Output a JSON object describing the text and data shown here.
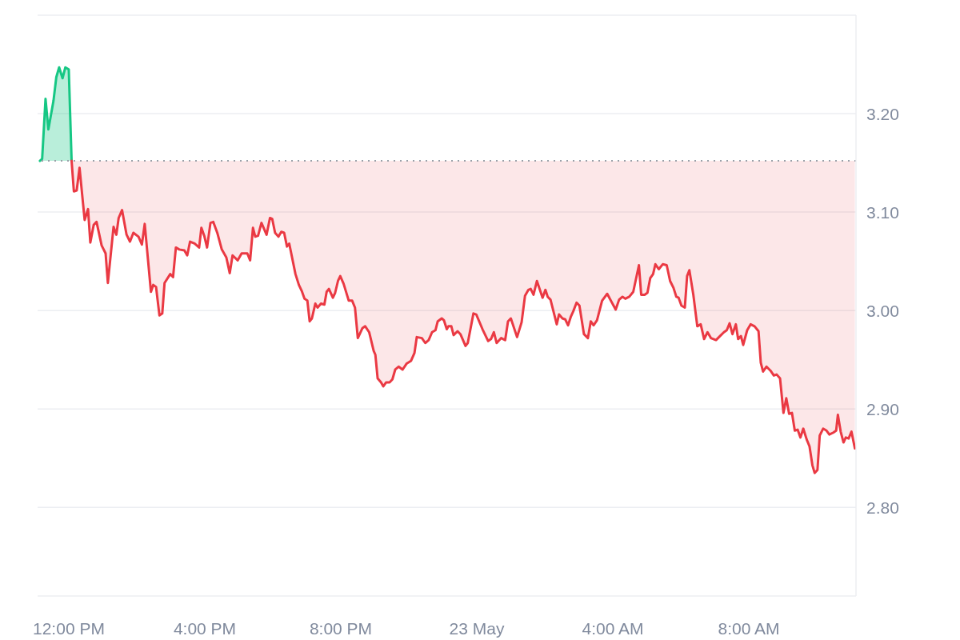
{
  "chart_data": {
    "type": "area",
    "series": [
      {
        "color": "#16c784",
        "x": [
          "--05-22T11:09",
          "--05-22T11:13",
          "--05-22T11:19",
          "--05-22T11:24",
          "--05-22T11:33",
          "--05-22T11:38",
          "--05-22T11:43",
          "--05-22T11:49",
          "--05-22T11:54",
          "--05-22T12:00",
          "--05-22T12:05"
        ],
        "values": [
          3.152,
          3.154,
          3.215,
          3.184,
          3.213,
          3.237,
          3.247,
          3.236,
          3.247,
          3.245,
          3.152
        ]
      },
      {
        "type": "line",
        "color": "#ea3943",
        "x": [
          "--05-22T12:05",
          "--05-22T12:09",
          "--05-22T12:14",
          "--05-22T12:19",
          "--05-22T12:28",
          "--05-22T12:34",
          "--05-22T12:38",
          "--05-22T12:44",
          "--05-22T12:49",
          "--05-22T12:58",
          "--05-22T13:05",
          "--05-22T13:09",
          "--05-22T13:19",
          "--05-22T13:24",
          "--05-22T13:28",
          "--05-22T13:34",
          "--05-22T13:42",
          "--05-22T13:48",
          "--05-22T13:54",
          "--05-22T14:03",
          "--05-22T14:09",
          "--05-22T14:14",
          "--05-22T14:25",
          "--05-22T14:29",
          "--05-22T14:34",
          "--05-22T14:40",
          "--05-22T14:45",
          "--05-22T14:49",
          "--05-22T14:59",
          "--05-22T15:04",
          "--05-22T15:09",
          "--05-22T15:15",
          "--05-22T15:24",
          "--05-22T15:29",
          "--05-22T15:34",
          "--05-22T15:42",
          "--05-22T15:50",
          "--05-22T15:54",
          "--05-22T15:59",
          "--05-22T16:04",
          "--05-22T16:10",
          "--05-22T16:15",
          "--05-22T16:22",
          "--05-22T16:30",
          "--05-22T16:38",
          "--05-22T16:44",
          "--05-22T16:49",
          "--05-22T16:58",
          "--05-22T17:05",
          "--05-22T17:15",
          "--05-22T17:20",
          "--05-22T17:25",
          "--05-22T17:29",
          "--05-22T17:34",
          "--05-22T17:40",
          "--05-22T17:49",
          "--05-22T17:55",
          "--05-22T17:59",
          "--05-22T18:04",
          "--05-22T18:10",
          "--05-22T18:15",
          "--05-22T18:20",
          "--05-22T18:25",
          "--05-22T18:29",
          "--05-22T18:40",
          "--05-22T18:46",
          "--05-22T18:51",
          "--05-22T18:56",
          "--05-22T19:01",
          "--05-22T19:05",
          "--05-22T19:09",
          "--05-22T19:15",
          "--05-22T19:19",
          "--05-22T19:25",
          "--05-22T19:31",
          "--05-22T19:35",
          "--05-22T19:39",
          "--05-22T19:46",
          "--05-22T19:50",
          "--05-22T19:55",
          "--05-22T19:59",
          "--05-22T20:05",
          "--05-22T20:14",
          "--05-22T20:20",
          "--05-22T20:25",
          "--05-22T20:30",
          "--05-22T20:38",
          "--05-22T20:43",
          "--05-22T20:50",
          "--05-22T20:58",
          "--05-22T21:01",
          "--05-22T21:05",
          "--05-22T21:11",
          "--05-22T21:15",
          "--05-22T21:20",
          "--05-22T21:26",
          "--05-22T21:31",
          "--05-22T21:36",
          "--05-22T21:42",
          "--05-22T21:49",
          "--05-22T21:56",
          "--05-22T22:04",
          "--05-22T22:10",
          "--05-22T22:14",
          "--05-22T22:23",
          "--05-22T22:29",
          "--05-22T22:35",
          "--05-22T22:41",
          "--05-22T22:47",
          "--05-22T22:51",
          "--05-22T22:58",
          "--05-22T23:02",
          "--05-22T23:07",
          "--05-22T23:10",
          "--05-22T23:15",
          "--05-22T23:19",
          "--05-22T23:26",
          "--05-22T23:31",
          "--05-22T23:40",
          "--05-22T23:44",
          "--05-22T23:54",
          "--05-22T23:59",
          "--05-23T00:10",
          "--05-23T00:20",
          "--05-23T00:25",
          "--05-23T00:30",
          "--05-23T00:35",
          "--05-23T00:43",
          "--05-23T00:50",
          "--05-23T00:55",
          "--05-23T01:00",
          "--05-23T01:11",
          "--05-23T01:19",
          "--05-23T01:25",
          "--05-23T01:31",
          "--05-23T01:35",
          "--05-23T01:40",
          "--05-23T01:46",
          "--05-23T01:56",
          "--05-23T02:01",
          "--05-23T02:05",
          "--05-23T02:10",
          "--05-23T02:21",
          "--05-23T02:25",
          "--05-23T02:31",
          "--05-23T02:36",
          "--05-23T02:41",
          "--05-23T02:46",
          "--05-23T02:50",
          "--05-23T02:56",
          "--05-23T03:01",
          "--05-23T03:09",
          "--05-23T03:16",
          "--05-23T03:21",
          "--05-23T03:26",
          "--05-23T03:32",
          "--05-23T03:41",
          "--05-23T03:50",
          "--05-23T04:05",
          "--05-23T04:11",
          "--05-23T04:17",
          "--05-23T04:22",
          "--05-23T04:29",
          "--05-23T04:36",
          "--05-23T04:46",
          "--05-23T04:50",
          "--05-23T04:56",
          "--05-23T05:01",
          "--05-23T05:06",
          "--05-23T05:11",
          "--05-23T05:15",
          "--05-23T05:21",
          "--05-23T05:28",
          "--05-23T05:35",
          "--05-23T05:41",
          "--05-23T05:47",
          "--05-23T05:52",
          "--05-23T05:56",
          "--05-23T06:01",
          "--05-23T06:07",
          "--05-23T06:11",
          "--05-23T06:15",
          "--05-23T06:22",
          "--05-23T06:29",
          "--05-23T06:35",
          "--05-23T06:41",
          "--05-23T06:47",
          "--05-23T06:53",
          "--05-23T07:02",
          "--05-23T07:09",
          "--05-23T07:16",
          "--05-23T07:21",
          "--05-23T07:26",
          "--05-23T07:31",
          "--05-23T07:37",
          "--05-23T07:41",
          "--05-23T07:46",
          "--05-23T07:50",
          "--05-23T07:57",
          "--05-23T08:03",
          "--05-23T08:10",
          "--05-23T08:17",
          "--05-23T08:21",
          "--05-23T08:25",
          "--05-23T08:31",
          "--05-23T08:38",
          "--05-23T08:44",
          "--05-23T08:49",
          "--05-23T08:55",
          "--05-23T09:01",
          "--05-23T09:06",
          "--05-23T09:11",
          "--05-23T09:16",
          "--05-23T09:21",
          "--05-23T09:26",
          "--05-23T09:31",
          "--05-23T09:36",
          "--05-23T09:42",
          "--05-23T09:47",
          "--05-23T09:52",
          "--05-23T09:56",
          "--05-23T10:01",
          "--05-23T10:05",
          "--05-23T10:11",
          "--05-23T10:17",
          "--05-23T10:22",
          "--05-23T10:29",
          "--05-23T10:34",
          "--05-23T10:37",
          "--05-23T10:42",
          "--05-23T10:47",
          "--05-23T10:51",
          "--05-23T10:56",
          "--05-23T11:01",
          "--05-23T11:07"
        ],
        "values": [
          3.152,
          3.121,
          3.122,
          3.145,
          3.092,
          3.103,
          3.069,
          3.087,
          3.09,
          3.066,
          3.058,
          3.028,
          3.085,
          3.077,
          3.094,
          3.102,
          3.077,
          3.07,
          3.079,
          3.075,
          3.067,
          3.088,
          3.019,
          3.026,
          3.024,
          2.995,
          2.997,
          3.028,
          3.037,
          3.034,
          3.064,
          3.062,
          3.061,
          3.056,
          3.07,
          3.068,
          3.064,
          3.084,
          3.076,
          3.064,
          3.089,
          3.09,
          3.079,
          3.062,
          3.054,
          3.038,
          3.056,
          3.051,
          3.058,
          3.058,
          3.051,
          3.084,
          3.075,
          3.076,
          3.089,
          3.077,
          3.094,
          3.093,
          3.079,
          3.075,
          3.08,
          3.079,
          3.065,
          3.068,
          3.037,
          3.026,
          3.02,
          3.012,
          3.01,
          2.989,
          2.992,
          3.007,
          3.003,
          3.007,
          3.006,
          3.019,
          3.022,
          3.013,
          3.018,
          3.03,
          3.035,
          3.027,
          3.01,
          3.01,
          3.003,
          2.972,
          2.982,
          2.984,
          2.978,
          2.959,
          2.955,
          2.931,
          2.927,
          2.923,
          2.927,
          2.927,
          2.93,
          2.94,
          2.943,
          2.94,
          2.946,
          2.949,
          2.957,
          2.973,
          2.972,
          2.967,
          2.97,
          2.978,
          2.98,
          2.989,
          2.992,
          2.99,
          2.981,
          2.984,
          2.984,
          2.975,
          2.979,
          2.976,
          2.964,
          2.967,
          2.997,
          2.996,
          2.981,
          2.969,
          2.971,
          2.978,
          2.967,
          2.972,
          2.97,
          2.989,
          2.992,
          2.973,
          2.988,
          3.015,
          3.021,
          3.022,
          3.016,
          3.03,
          3.013,
          3.021,
          3.014,
          3.011,
          2.986,
          2.996,
          2.992,
          2.991,
          2.985,
          2.994,
          2.999,
          3.008,
          3.005,
          2.976,
          2.972,
          2.989,
          2.985,
          2.99,
          3.01,
          3.017,
          3.001,
          3.011,
          3.014,
          3.012,
          3.014,
          3.019,
          3.046,
          3.016,
          3.016,
          3.018,
          3.033,
          3.037,
          3.047,
          3.042,
          3.047,
          3.046,
          3.03,
          3.023,
          3.014,
          3.013,
          3.005,
          3.003,
          3.035,
          3.041,
          3.016,
          2.984,
          2.986,
          2.971,
          2.978,
          2.972,
          2.97,
          2.974,
          2.978,
          2.98,
          2.987,
          2.976,
          2.986,
          2.971,
          2.974,
          2.965,
          2.98,
          2.986,
          2.984,
          2.979,
          2.947,
          2.938,
          2.943,
          2.939,
          2.934,
          2.935,
          2.931,
          2.896,
          2.911,
          2.895,
          2.896,
          2.878,
          2.879,
          2.871,
          2.88,
          2.869,
          2.862,
          2.843,
          2.835,
          2.838,
          2.873,
          2.88,
          2.878,
          2.874,
          2.876,
          2.878,
          2.894,
          2.877,
          2.866,
          2.871,
          2.87,
          2.877,
          2.86
        ],
        "lower": [
          3.152,
          3.121,
          3.122,
          3.145,
          3.092,
          3.103,
          3.069,
          3.087,
          3.09,
          3.066,
          3.058,
          3.028,
          3.085,
          3.077,
          3.094,
          3.102,
          3.077,
          3.07,
          3.079,
          3.075,
          3.067,
          3.088,
          3.019,
          3.026,
          3.024,
          2.995,
          2.997,
          3.028,
          3.037,
          3.034,
          3.064,
          3.062,
          3.061,
          3.056,
          3.07,
          3.068,
          3.064,
          3.084,
          3.076,
          3.064,
          3.089,
          3.09,
          3.079,
          3.062,
          3.054,
          3.038,
          3.056,
          3.051,
          3.058,
          3.058,
          3.051,
          3.084,
          3.075,
          3.076,
          3.089,
          3.077,
          3.094,
          3.093,
          3.079,
          3.075,
          3.08,
          3.079,
          3.065,
          3.068,
          3.037,
          3.026,
          3.02,
          3.012,
          3.01,
          2.989,
          2.992,
          3.007,
          3.003,
          3.007,
          3.006,
          3.019,
          3.022,
          3.013,
          3.018,
          3.03,
          3.035,
          3.027,
          3.01,
          3.01,
          3.003,
          2.972,
          2.982,
          2.984,
          2.978,
          2.959,
          2.955,
          2.931,
          2.927,
          2.923,
          2.927,
          2.927,
          2.93,
          2.94,
          2.943,
          2.94,
          2.946,
          2.949,
          2.957,
          2.973,
          2.972,
          2.967,
          2.97,
          2.978,
          2.98,
          2.989,
          2.992,
          2.99,
          2.981,
          2.984,
          2.984,
          2.975,
          2.979,
          2.976,
          2.964,
          2.967,
          2.997,
          2.996,
          2.981,
          2.969,
          2.971,
          2.978,
          2.967,
          2.972,
          2.97,
          2.989,
          2.992,
          2.973,
          2.988,
          3.015,
          3.021,
          3.022,
          3.016,
          3.03,
          3.013,
          3.021,
          3.014,
          3.011,
          2.986,
          2.996,
          2.992,
          2.991,
          2.985,
          2.994,
          2.999,
          3.008,
          3.005,
          2.976,
          2.972,
          2.989,
          2.985,
          2.99,
          3.01,
          3.017,
          3.001,
          3.011,
          3.014,
          3.012,
          3.014,
          3.019,
          3.046,
          3.016,
          3.016,
          3.018,
          3.033,
          3.037,
          3.047,
          3.042,
          3.047,
          3.046,
          3.03,
          3.023,
          3.014,
          3.013,
          3.005,
          3.003,
          3.035,
          3.041,
          3.016,
          2.984,
          2.986,
          2.971,
          2.978,
          2.972,
          2.97,
          2.974,
          2.978,
          2.98,
          2.987,
          2.976,
          2.986,
          2.971,
          2.974,
          2.965,
          2.98,
          2.986,
          2.984,
          2.979,
          2.947,
          2.938,
          2.943,
          2.939,
          2.934,
          2.935,
          2.931,
          2.896,
          2.911,
          2.895,
          2.896,
          2.878,
          2.879,
          2.871,
          2.88,
          2.869,
          2.862,
          2.843,
          2.835,
          2.838,
          2.873,
          2.88,
          2.878,
          2.874,
          2.876,
          2.878,
          2.894,
          2.877,
          2.866,
          2.871,
          2.87,
          2.877,
          2.86
        ],
        "upper": [
          3.152,
          3.152,
          3.152,
          3.152,
          3.152,
          3.152,
          3.152,
          3.152,
          3.152,
          3.152,
          3.152,
          3.152,
          3.152,
          3.152,
          3.152,
          3.152,
          3.152,
          3.152,
          3.152,
          3.152,
          3.152,
          3.152,
          3.152,
          3.152,
          3.152,
          3.152,
          3.152,
          3.152,
          3.152,
          3.152,
          3.152,
          3.152,
          3.152,
          3.152,
          3.152,
          3.152,
          3.152,
          3.152,
          3.152,
          3.152,
          3.152,
          3.152,
          3.152,
          3.152,
          3.152,
          3.152,
          3.152,
          3.152,
          3.152,
          3.152,
          3.152,
          3.152,
          3.152,
          3.152,
          3.152,
          3.152,
          3.152,
          3.152,
          3.152,
          3.152,
          3.152,
          3.152,
          3.152,
          3.152,
          3.152,
          3.152,
          3.152,
          3.152,
          3.152,
          3.152,
          3.152,
          3.152,
          3.152,
          3.152,
          3.152,
          3.152,
          3.152,
          3.152,
          3.152,
          3.152,
          3.152,
          3.152,
          3.152,
          3.152,
          3.152,
          3.152,
          3.152,
          3.152,
          3.152,
          3.152,
          3.152,
          3.152,
          3.152,
          3.152,
          3.152,
          3.152,
          3.152,
          3.152,
          3.152,
          3.152,
          3.152,
          3.152,
          3.152,
          3.152,
          3.152,
          3.152,
          3.152,
          3.152,
          3.152,
          3.152,
          3.152,
          3.152,
          3.152,
          3.152,
          3.152,
          3.152,
          3.152,
          3.152,
          3.152,
          3.152,
          3.152,
          3.152,
          3.152,
          3.152,
          3.152,
          3.152,
          3.152,
          3.152,
          3.152,
          3.152,
          3.152,
          3.152,
          3.152,
          3.152,
          3.152,
          3.152,
          3.152,
          3.152,
          3.152,
          3.152,
          3.152,
          3.152,
          3.152,
          3.152,
          3.152,
          3.152,
          3.152,
          3.152,
          3.152,
          3.152,
          3.152,
          3.152,
          3.152,
          3.152,
          3.152,
          3.152,
          3.152,
          3.152,
          3.152,
          3.152,
          3.152,
          3.152,
          3.152,
          3.152,
          3.152,
          3.152,
          3.152,
          3.152,
          3.152,
          3.152,
          3.152,
          3.152,
          3.152,
          3.152,
          3.152,
          3.152,
          3.152,
          3.152,
          3.152,
          3.152,
          3.152,
          3.152,
          3.152,
          3.152,
          3.152,
          3.152,
          3.152,
          3.152,
          3.152,
          3.152,
          3.152,
          3.152,
          3.152,
          3.152,
          3.152,
          3.152,
          3.152,
          3.152,
          3.152,
          3.152,
          3.152,
          3.152,
          3.152,
          3.152,
          3.152,
          3.152,
          3.152,
          3.152,
          3.152,
          3.152,
          3.152,
          3.152,
          3.152,
          3.152,
          3.152,
          3.152,
          3.152,
          3.152,
          3.152,
          3.152,
          3.152,
          3.152,
          3.152,
          3.152,
          3.152,
          3.152,
          3.152,
          3.152,
          3.152,
          3.152,
          3.152,
          3.152,
          3.152,
          3.152,
          3.152
        ]
      }
    ],
    "xlim": [
      "--05-22T11:05",
      "--05-23T11:09"
    ],
    "xticks": [
      {
        "value": "--05-22T12:00",
        "label": "12:00 PM"
      },
      {
        "value": "--05-22T16:00",
        "label": "4:00 PM"
      },
      {
        "value": "--05-22T20:00",
        "label": "8:00 PM"
      },
      {
        "value": "--05-23T00:00",
        "label": "23 May"
      },
      {
        "value": "--05-23T04:00",
        "label": "4:00 AM"
      },
      {
        "value": "--05-23T08:00",
        "label": "8:00 AM"
      }
    ],
    "ylim": [
      2.71,
      3.3
    ],
    "yticks": [
      {
        "value": 2.8,
        "label": "2.80"
      },
      {
        "value": 2.9,
        "label": "2.90"
      },
      {
        "value": 3.0,
        "label": "3.00"
      },
      {
        "value": 3.1,
        "label": "3.10"
      },
      {
        "value": 3.2,
        "label": "3.20"
      }
    ],
    "grid": "y",
    "ref_lines": [
      {
        "axis": "y",
        "value": 3.152,
        "color": "#9aa0a8",
        "line_style": "dotted"
      }
    ]
  }
}
